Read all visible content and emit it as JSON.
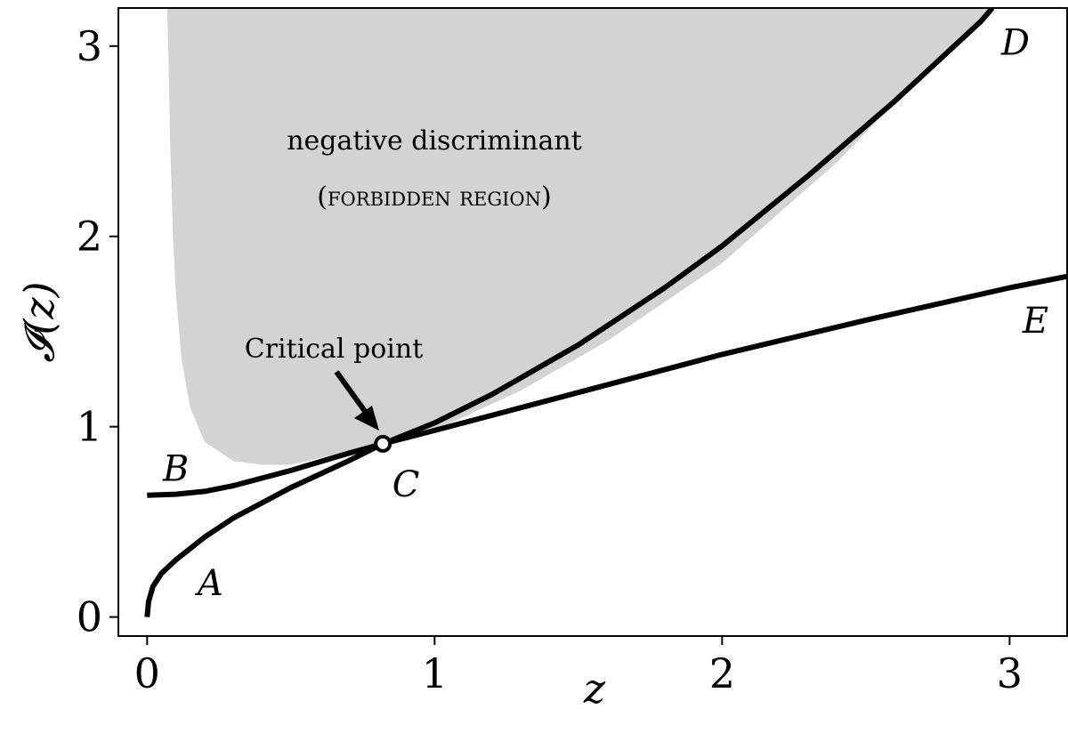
{
  "chart_data": {
    "type": "line",
    "xlabel": "z",
    "ylabel": "𝓘(z)",
    "xlim": [
      -0.1,
      3.2
    ],
    "ylim": [
      -0.1,
      3.2
    ],
    "xticks": [
      {
        "value": 0,
        "label": "0"
      },
      {
        "value": 1,
        "label": "1"
      },
      {
        "value": 2,
        "label": "2"
      },
      {
        "value": 3,
        "label": "3"
      }
    ],
    "yticks": [
      {
        "value": 0,
        "label": "0"
      },
      {
        "value": 1,
        "label": "1"
      },
      {
        "value": 2,
        "label": "2"
      },
      {
        "value": 3,
        "label": "3"
      }
    ],
    "grid": false,
    "legend": "none",
    "region": {
      "name": "forbidden-region",
      "label_line1": "negative discriminant",
      "label_line2": "(forbidden region)",
      "color": "#d3d3d3",
      "left_boundary": {
        "x": [
          0.07,
          0.075,
          0.08,
          0.09,
          0.1,
          0.12,
          0.15,
          0.2,
          0.3,
          0.4,
          0.5
        ],
        "y": [
          3.2,
          2.9,
          2.5,
          2.0,
          1.7,
          1.35,
          1.1,
          0.92,
          0.82,
          0.8,
          0.8
        ]
      },
      "right_boundary": {
        "x": [
          0.5,
          0.82,
          1.0,
          1.3,
          1.6,
          2.0,
          2.4,
          2.7,
          2.94
        ],
        "y": [
          0.8,
          0.91,
          0.98,
          1.19,
          1.45,
          1.86,
          2.39,
          2.86,
          3.2
        ]
      }
    },
    "series": [
      {
        "name": "A-C-D",
        "color": "#000000",
        "x": [
          0,
          0.005,
          0.02,
          0.05,
          0.1,
          0.2,
          0.3,
          0.5,
          0.7,
          0.82,
          1.0,
          1.2,
          1.5,
          1.8,
          2.0,
          2.3,
          2.6,
          2.9,
          2.94
        ],
        "y": [
          0,
          0.08,
          0.16,
          0.23,
          0.3,
          0.42,
          0.52,
          0.68,
          0.82,
          0.91,
          1.02,
          1.17,
          1.43,
          1.73,
          1.95,
          2.32,
          2.71,
          3.13,
          3.2
        ]
      },
      {
        "name": "B-C-E",
        "color": "#000000",
        "x": [
          0,
          0.1,
          0.2,
          0.3,
          0.5,
          0.7,
          0.82,
          1.0,
          1.5,
          2.0,
          2.5,
          3.0,
          3.2
        ],
        "y": [
          0.64,
          0.645,
          0.66,
          0.69,
          0.77,
          0.86,
          0.91,
          0.98,
          1.18,
          1.38,
          1.56,
          1.73,
          1.79
        ]
      }
    ],
    "critical_point": {
      "x": 0.82,
      "y": 0.91,
      "label": "Critical point"
    },
    "curve_labels": [
      {
        "text": "A",
        "x": 0.22,
        "y": 0.18
      },
      {
        "text": "B",
        "x": 0.1,
        "y": 0.78
      },
      {
        "text": "C",
        "x": 0.9,
        "y": 0.7
      },
      {
        "text": "D",
        "x": 3.02,
        "y": 3.02
      },
      {
        "text": "E",
        "x": 3.09,
        "y": 1.56
      }
    ]
  }
}
